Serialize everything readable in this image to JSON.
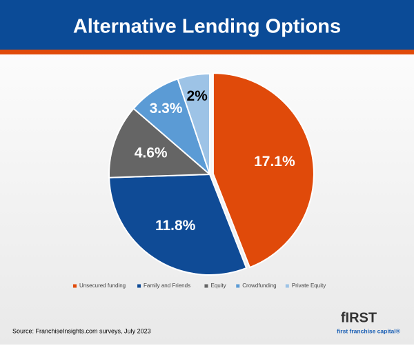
{
  "chart_data": {
    "type": "pie",
    "title": "Alternative Lending Options",
    "categories": [
      "Unsecured funding",
      "Family and Friends",
      "Equity",
      "Crowdfunding",
      "Private Equity"
    ],
    "values": [
      17.1,
      11.8,
      4.6,
      3.3,
      2
    ],
    "value_labels": [
      "17.1%",
      "11.8%",
      "4.6%",
      "3.3%",
      "2%"
    ],
    "colors": [
      "#e04a0a",
      "#0f4b96",
      "#656565",
      "#5b9bd5",
      "#9dc3e6"
    ],
    "label_colors": [
      "#ffffff",
      "#ffffff",
      "#ffffff",
      "#ffffff",
      "#000000"
    ],
    "legend": "bottom",
    "source": "Source: FranchiseInsights.com surveys, July 2023"
  },
  "logo": {
    "word": "fIRST",
    "tagline": "first franchise capital®"
  }
}
